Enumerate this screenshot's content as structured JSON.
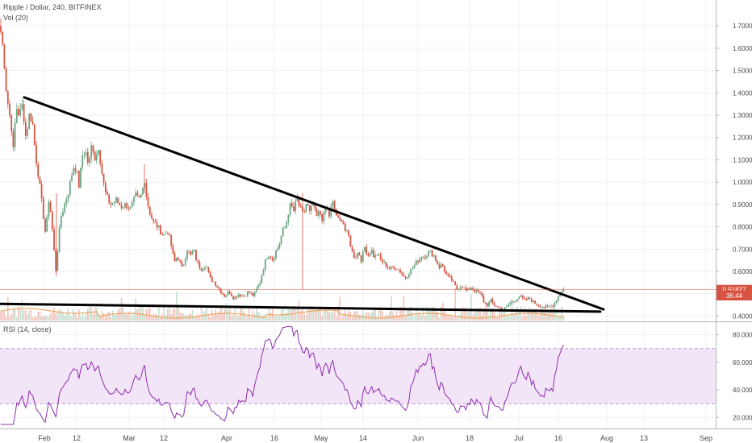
{
  "header": {
    "symbol": "Ripple / Dollar, 240, BITFINEX",
    "volume_indicator": "Vol (20)",
    "rsi_indicator": "RSI (14, close)"
  },
  "price_badge": "0.51827",
  "rsi_badge": "36.44",
  "colors": {
    "up": "#6ba583",
    "down": "#d75442",
    "rsi_line": "#8e2fae",
    "rsi_band": "#f3e5f8",
    "trendline": "#000000",
    "price_line": "#d75442",
    "volume_ma": "#f29a4a"
  },
  "chart_data": [
    {
      "type": "candlestick",
      "ylim": [
        0.38,
        1.78
      ],
      "y_ticks": [
        "0.40000",
        "0.50000",
        "0.60000",
        "0.70000",
        "0.80000",
        "0.90000",
        "1.00000",
        "1.10000",
        "1.20000",
        "1.30000",
        "1.40000",
        "1.50000",
        "1.60000",
        "1.70000"
      ],
      "x_ticks": [
        "Feb",
        "12",
        "Mar",
        "12",
        "Apr",
        "16",
        "May",
        "14",
        "Jun",
        "18",
        "Jul",
        "16",
        "Aug",
        "13",
        "Sep"
      ],
      "close_path": [
        [
          0,
          1.7
        ],
        [
          3,
          1.62
        ],
        [
          5,
          1.55
        ],
        [
          8,
          1.4
        ],
        [
          12,
          1.3
        ],
        [
          14,
          1.26
        ],
        [
          16,
          1.12
        ],
        [
          20,
          1.34
        ],
        [
          24,
          1.3
        ],
        [
          28,
          1.35
        ],
        [
          32,
          1.2
        ],
        [
          36,
          1.3
        ],
        [
          40,
          1.28
        ],
        [
          44,
          1.12
        ],
        [
          48,
          1.02
        ],
        [
          52,
          0.9
        ],
        [
          56,
          0.78
        ],
        [
          58,
          0.82
        ],
        [
          60,
          0.93
        ],
        [
          63,
          0.86
        ],
        [
          66,
          0.74
        ],
        [
          69,
          0.6
        ],
        [
          72,
          0.72
        ],
        [
          75,
          0.84
        ],
        [
          80,
          0.9
        ],
        [
          85,
          0.96
        ],
        [
          88,
          1.02
        ],
        [
          92,
          1.08
        ],
        [
          95,
          1.05
        ],
        [
          98,
          0.98
        ],
        [
          102,
          1.12
        ],
        [
          106,
          1.14
        ],
        [
          110,
          1.07
        ],
        [
          114,
          1.18
        ],
        [
          118,
          1.1
        ],
        [
          122,
          1.16
        ],
        [
          126,
          1.05
        ],
        [
          130,
          0.96
        ],
        [
          134,
          0.92
        ],
        [
          138,
          0.9
        ],
        [
          144,
          0.92
        ],
        [
          150,
          0.89
        ],
        [
          156,
          0.9
        ],
        [
          162,
          0.88
        ],
        [
          168,
          0.94
        ],
        [
          172,
          0.92
        ],
        [
          176,
          0.95
        ],
        [
          179,
          1.02
        ],
        [
          182,
          0.92
        ],
        [
          186,
          0.86
        ],
        [
          190,
          0.82
        ],
        [
          196,
          0.8
        ],
        [
          202,
          0.76
        ],
        [
          208,
          0.78
        ],
        [
          212,
          0.72
        ],
        [
          216,
          0.64
        ],
        [
          220,
          0.67
        ],
        [
          226,
          0.61
        ],
        [
          232,
          0.7
        ],
        [
          236,
          0.67
        ],
        [
          240,
          0.7
        ],
        [
          244,
          0.64
        ],
        [
          250,
          0.61
        ],
        [
          255,
          0.63
        ],
        [
          260,
          0.57
        ],
        [
          266,
          0.55
        ],
        [
          272,
          0.52
        ],
        [
          278,
          0.49
        ],
        [
          284,
          0.51
        ],
        [
          290,
          0.48
        ],
        [
          296,
          0.5
        ],
        [
          302,
          0.49
        ],
        [
          308,
          0.51
        ],
        [
          314,
          0.49
        ],
        [
          318,
          0.52
        ],
        [
          322,
          0.55
        ],
        [
          326,
          0.61
        ],
        [
          330,
          0.66
        ],
        [
          334,
          0.68
        ],
        [
          338,
          0.65
        ],
        [
          342,
          0.69
        ],
        [
          346,
          0.72
        ],
        [
          350,
          0.78
        ],
        [
          354,
          0.8
        ],
        [
          357,
          0.86
        ],
        [
          360,
          0.9
        ],
        [
          364,
          0.87
        ],
        [
          368,
          0.93
        ],
        [
          372,
          0.88
        ],
        [
          376,
          0.85
        ],
        [
          380,
          0.91
        ],
        [
          384,
          0.86
        ],
        [
          388,
          0.9
        ],
        [
          392,
          0.84
        ],
        [
          396,
          0.87
        ],
        [
          400,
          0.83
        ],
        [
          404,
          0.89
        ],
        [
          408,
          0.85
        ],
        [
          412,
          0.91
        ],
        [
          416,
          0.86
        ],
        [
          420,
          0.82
        ],
        [
          424,
          0.84
        ],
        [
          428,
          0.78
        ],
        [
          432,
          0.76
        ],
        [
          436,
          0.69
        ],
        [
          440,
          0.66
        ],
        [
          444,
          0.69
        ],
        [
          448,
          0.65
        ],
        [
          452,
          0.71
        ],
        [
          456,
          0.67
        ],
        [
          460,
          0.7
        ],
        [
          464,
          0.66
        ],
        [
          468,
          0.68
        ],
        [
          472,
          0.65
        ],
        [
          478,
          0.63
        ],
        [
          484,
          0.61
        ],
        [
          490,
          0.62
        ],
        [
          496,
          0.6
        ],
        [
          502,
          0.57
        ],
        [
          508,
          0.6
        ],
        [
          514,
          0.63
        ],
        [
          520,
          0.66
        ],
        [
          526,
          0.67
        ],
        [
          532,
          0.69
        ],
        [
          538,
          0.67
        ],
        [
          544,
          0.62
        ],
        [
          548,
          0.63
        ],
        [
          554,
          0.58
        ],
        [
          560,
          0.56
        ],
        [
          566,
          0.52
        ],
        [
          572,
          0.54
        ],
        [
          578,
          0.51
        ],
        [
          584,
          0.53
        ],
        [
          590,
          0.51
        ],
        [
          596,
          0.5
        ],
        [
          600,
          0.46
        ],
        [
          604,
          0.45
        ],
        [
          608,
          0.47
        ],
        [
          612,
          0.45
        ],
        [
          618,
          0.44
        ],
        [
          624,
          0.43
        ],
        [
          628,
          0.44
        ],
        [
          632,
          0.46
        ],
        [
          638,
          0.47
        ],
        [
          644,
          0.49
        ],
        [
          650,
          0.47
        ],
        [
          656,
          0.48
        ],
        [
          662,
          0.46
        ],
        [
          668,
          0.45
        ],
        [
          674,
          0.44
        ],
        [
          680,
          0.44
        ],
        [
          686,
          0.45
        ],
        [
          692,
          0.49
        ],
        [
          697,
          0.52
        ],
        [
          700,
          0.52
        ]
      ],
      "trendlines": [
        {
          "from": [
            30,
            1.38
          ],
          "to": [
            748,
            0.43
          ]
        },
        {
          "from": [
            0,
            0.455
          ],
          "to": [
            744,
            0.42
          ]
        }
      ]
    },
    {
      "type": "line",
      "series": [
        {
          "name": "RSI (14, close)",
          "values": []
        }
      ],
      "ylim": [
        12,
        88
      ],
      "y_ticks": [
        "20.0000",
        "40.0000",
        "60.0000",
        "80.0000"
      ],
      "overbought": 70,
      "oversold": 30
    }
  ]
}
